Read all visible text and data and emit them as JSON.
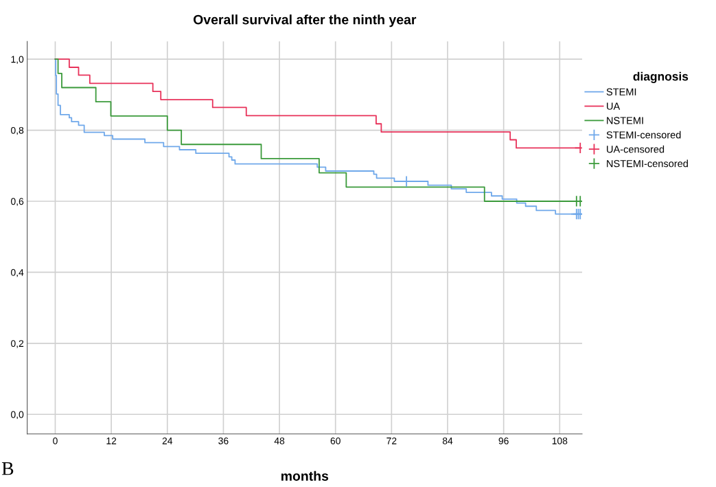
{
  "chart_data": {
    "type": "step",
    "title": "Overall survival after the ninth year",
    "xlabel": "months",
    "legend_title": "diagnosis",
    "xlim": [
      -6,
      112.8
    ],
    "ylim": [
      -0.055,
      1.05
    ],
    "xticks": [
      0,
      12,
      24,
      36,
      48,
      60,
      72,
      84,
      96,
      108
    ],
    "yticks": [
      {
        "value": 0.0,
        "label": "0,0"
      },
      {
        "value": 0.2,
        "label": "0,2"
      },
      {
        "value": 0.4,
        "label": "0,4"
      },
      {
        "value": 0.6,
        "label": "0,6"
      },
      {
        "value": 0.8,
        "label": "0,8"
      },
      {
        "value": 1.0,
        "label": "1,0"
      }
    ],
    "grid": true,
    "legend": "right",
    "series": [
      {
        "name": "STEMI",
        "color": "#6fa8ea",
        "x": [
          0,
          0.1,
          0.25,
          0.6,
          1.1,
          3.0,
          3.5,
          5.0,
          6.2,
          10.5,
          12.3,
          19.2,
          23.2,
          26.6,
          30.1,
          37.2,
          37.8,
          38.5,
          56.1,
          57.9,
          68.2,
          68.8,
          72.6,
          79.8,
          84.8,
          88.0,
          93.4,
          95.7,
          98.8,
          100.7,
          103.0,
          107.1,
          112.4
        ],
        "values": [
          1.0,
          0.954,
          0.902,
          0.87,
          0.844,
          0.835,
          0.824,
          0.814,
          0.794,
          0.785,
          0.775,
          0.765,
          0.754,
          0.745,
          0.735,
          0.725,
          0.716,
          0.705,
          0.696,
          0.685,
          0.676,
          0.665,
          0.656,
          0.645,
          0.635,
          0.625,
          0.615,
          0.606,
          0.595,
          0.586,
          0.574,
          0.564,
          0.564
        ]
      },
      {
        "name": "UA",
        "color": "#e8325a",
        "x": [
          0,
          3.0,
          5.0,
          7.4,
          20.9,
          22.6,
          33.7,
          40.9,
          68.7,
          69.8,
          97.4,
          98.7,
          112.4
        ],
        "values": [
          1.0,
          0.977,
          0.955,
          0.932,
          0.909,
          0.886,
          0.864,
          0.841,
          0.818,
          0.795,
          0.773,
          0.75,
          0.75
        ]
      },
      {
        "name": "NSTEMI",
        "color": "#3a9a3a",
        "x": [
          0,
          0.6,
          1.4,
          8.7,
          11.9,
          24.0,
          27.0,
          44.1,
          56.5,
          62.3,
          91.9,
          112.4
        ],
        "values": [
          1.0,
          0.96,
          0.92,
          0.88,
          0.84,
          0.8,
          0.76,
          0.72,
          0.68,
          0.64,
          0.6,
          0.6
        ]
      },
      {
        "name": "STEMI-censored",
        "type": "scatter",
        "marker": "cross",
        "color": "#6fa8ea",
        "x": [
          75.2,
          111.6,
          112.0,
          112.4
        ],
        "values": [
          0.656,
          0.564,
          0.564,
          0.564
        ]
      },
      {
        "name": "UA-censored",
        "type": "scatter",
        "marker": "cross",
        "color": "#e8325a",
        "x": [
          112.4
        ],
        "values": [
          0.75
        ]
      },
      {
        "name": "NSTEMI-censored",
        "type": "scatter",
        "marker": "cross",
        "color": "#3a9a3a",
        "x": [
          111.6,
          112.4
        ],
        "values": [
          0.6,
          0.6
        ]
      }
    ],
    "annotations": [
      "B"
    ]
  }
}
